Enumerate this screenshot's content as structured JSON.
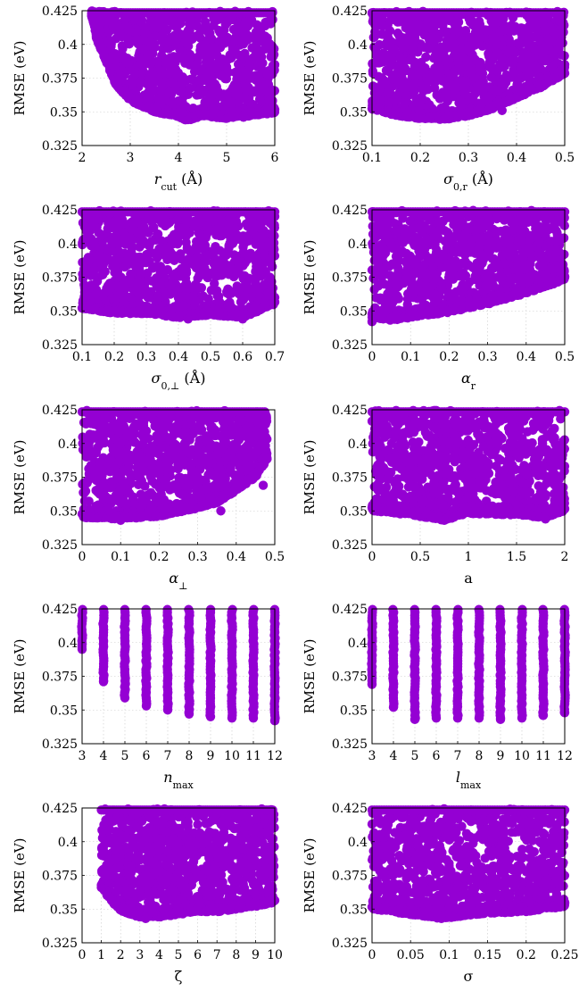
{
  "colors": {
    "points": "#9400D3",
    "frame": "#000000",
    "grid": "#c8c8c8"
  },
  "shared": {
    "ylabel": "RMSE (eV)",
    "ylim": [
      0.325,
      0.425
    ],
    "yticks": [
      0.325,
      0.35,
      0.375,
      0.4,
      0.425
    ],
    "ytick_labels": [
      "0.325",
      "0.35",
      "0.375",
      "0.4",
      "0.425"
    ]
  },
  "chart_data": [
    {
      "type": "scatter",
      "xlabel": "r_cut (Å)",
      "ylabel": "RMSE (eV)",
      "xlim": [
        2,
        6
      ],
      "xticks": [
        2,
        3,
        4,
        5,
        6
      ],
      "xtick_labels": [
        "2",
        "3",
        "4",
        "5",
        "6"
      ],
      "ylim": [
        0.325,
        0.425
      ],
      "grid": true,
      "lower_envelope": [
        [
          2.2,
          0.421
        ],
        [
          2.3,
          0.404
        ],
        [
          2.5,
          0.387
        ],
        [
          2.7,
          0.37
        ],
        [
          3.0,
          0.358
        ],
        [
          3.5,
          0.35
        ],
        [
          4.0,
          0.346
        ],
        [
          4.2,
          0.343
        ],
        [
          4.5,
          0.347
        ],
        [
          5.0,
          0.345
        ],
        [
          5.5,
          0.347
        ],
        [
          6.0,
          0.349
        ]
      ],
      "isolated_points": [
        [
          2.2,
          0.421
        ],
        [
          2.7,
          0.374
        ],
        [
          5.35,
          0.346
        ],
        [
          5.85,
          0.35
        ]
      ]
    },
    {
      "type": "scatter",
      "xlabel": "σ_0,r (Å)",
      "ylabel": "RMSE (eV)",
      "xlim": [
        0.1,
        0.5
      ],
      "xticks": [
        0.1,
        0.2,
        0.3,
        0.4,
        0.5
      ],
      "xtick_labels": [
        "0.1",
        "0.2",
        "0.3",
        "0.4",
        "0.5"
      ],
      "ylim": [
        0.325,
        0.425
      ],
      "grid": true,
      "lower_envelope": [
        [
          0.1,
          0.352
        ],
        [
          0.15,
          0.347
        ],
        [
          0.2,
          0.345
        ],
        [
          0.25,
          0.344
        ],
        [
          0.3,
          0.347
        ],
        [
          0.35,
          0.352
        ],
        [
          0.4,
          0.36
        ],
        [
          0.45,
          0.368
        ],
        [
          0.5,
          0.378
        ]
      ],
      "isolated_points": [
        [
          0.37,
          0.351
        ],
        [
          0.5,
          0.385
        ]
      ]
    },
    {
      "type": "scatter",
      "xlabel": "σ_0,⊥ (Å)",
      "ylabel": "RMSE (eV)",
      "xlim": [
        0.1,
        0.7
      ],
      "xticks": [
        0.1,
        0.2,
        0.3,
        0.4,
        0.5,
        0.6,
        0.7
      ],
      "xtick_labels": [
        "0.1",
        "0.2",
        "0.3",
        "0.4",
        "0.5",
        "0.6",
        "0.7"
      ],
      "ylim": [
        0.325,
        0.425
      ],
      "grid": true,
      "lower_envelope": [
        [
          0.1,
          0.352
        ],
        [
          0.2,
          0.348
        ],
        [
          0.3,
          0.348
        ],
        [
          0.4,
          0.345
        ],
        [
          0.5,
          0.347
        ],
        [
          0.6,
          0.345
        ],
        [
          0.7,
          0.355
        ]
      ],
      "isolated_points": [
        [
          0.43,
          0.344
        ],
        [
          0.6,
          0.344
        ],
        [
          0.7,
          0.36
        ]
      ]
    },
    {
      "type": "scatter",
      "xlabel": "α_r",
      "ylabel": "RMSE (eV)",
      "xlim": [
        0,
        0.5
      ],
      "xticks": [
        0,
        0.1,
        0.2,
        0.3,
        0.4,
        0.5
      ],
      "xtick_labels": [
        "0",
        "0.1",
        "0.2",
        "0.3",
        "0.4",
        "0.5"
      ],
      "ylim": [
        0.325,
        0.425
      ],
      "grid": true,
      "lower_envelope": [
        [
          0.0,
          0.345
        ],
        [
          0.05,
          0.343
        ],
        [
          0.1,
          0.345
        ],
        [
          0.2,
          0.349
        ],
        [
          0.3,
          0.355
        ],
        [
          0.4,
          0.363
        ],
        [
          0.45,
          0.368
        ],
        [
          0.5,
          0.373
        ]
      ],
      "isolated_points": [
        [
          0.0,
          0.342
        ],
        [
          0.5,
          0.375
        ]
      ]
    },
    {
      "type": "scatter",
      "xlabel": "α_⊥",
      "ylabel": "RMSE (eV)",
      "xlim": [
        0,
        0.5
      ],
      "xticks": [
        0,
        0.1,
        0.2,
        0.3,
        0.4,
        0.5
      ],
      "xtick_labels": [
        "0",
        "0.1",
        "0.2",
        "0.3",
        "0.4",
        "0.5"
      ],
      "ylim": [
        0.325,
        0.425
      ],
      "grid": true,
      "lower_envelope": [
        [
          0.0,
          0.345
        ],
        [
          0.1,
          0.344
        ],
        [
          0.2,
          0.346
        ],
        [
          0.3,
          0.352
        ],
        [
          0.35,
          0.356
        ],
        [
          0.4,
          0.365
        ],
        [
          0.45,
          0.375
        ],
        [
          0.48,
          0.388
        ]
      ],
      "isolated_points": [
        [
          0.1,
          0.343
        ],
        [
          0.36,
          0.35
        ],
        [
          0.47,
          0.369
        ]
      ]
    },
    {
      "type": "scatter",
      "xlabel": "a",
      "ylabel": "RMSE (eV)",
      "xlim": [
        0,
        2
      ],
      "xticks": [
        0,
        0.5,
        1,
        1.5,
        2
      ],
      "xtick_labels": [
        "0",
        "0.5",
        "1",
        "1.5",
        "2"
      ],
      "ylim": [
        0.325,
        0.425
      ],
      "grid": true,
      "lower_envelope": [
        [
          0.0,
          0.35
        ],
        [
          0.4,
          0.347
        ],
        [
          0.75,
          0.343
        ],
        [
          1.0,
          0.348
        ],
        [
          1.5,
          0.347
        ],
        [
          1.8,
          0.345
        ],
        [
          2.0,
          0.35
        ]
      ],
      "isolated_points": [
        [
          0.75,
          0.343
        ],
        [
          1.8,
          0.344
        ]
      ]
    },
    {
      "type": "scatter",
      "xlabel": "n_max",
      "ylabel": "RMSE (eV)",
      "xlim": [
        3,
        12
      ],
      "xticks": [
        3,
        4,
        5,
        6,
        7,
        8,
        9,
        10,
        11,
        12
      ],
      "xtick_labels": [
        "3",
        "4",
        "5",
        "6",
        "7",
        "8",
        "9",
        "10",
        "11",
        "12"
      ],
      "ylim": [
        0.325,
        0.425
      ],
      "grid": true,
      "discrete_columns": [
        [
          3,
          0.395
        ],
        [
          4,
          0.371
        ],
        [
          5,
          0.359
        ],
        [
          6,
          0.353
        ],
        [
          7,
          0.35
        ],
        [
          8,
          0.347
        ],
        [
          9,
          0.345
        ],
        [
          10,
          0.344
        ],
        [
          11,
          0.344
        ],
        [
          12,
          0.342
        ]
      ]
    },
    {
      "type": "scatter",
      "xlabel": "l_max",
      "ylabel": "RMSE (eV)",
      "xlim": [
        3,
        12
      ],
      "xticks": [
        3,
        4,
        5,
        6,
        7,
        8,
        9,
        10,
        11,
        12
      ],
      "xtick_labels": [
        "3",
        "4",
        "5",
        "6",
        "7",
        "8",
        "9",
        "10",
        "11",
        "12"
      ],
      "ylim": [
        0.325,
        0.425
      ],
      "grid": true,
      "discrete_columns": [
        [
          3,
          0.369
        ],
        [
          4,
          0.352
        ],
        [
          5,
          0.343
        ],
        [
          6,
          0.344
        ],
        [
          7,
          0.344
        ],
        [
          8,
          0.344
        ],
        [
          9,
          0.343
        ],
        [
          10,
          0.344
        ],
        [
          11,
          0.346
        ],
        [
          12,
          0.348
        ]
      ]
    },
    {
      "type": "scatter",
      "xlabel": "ζ",
      "ylabel": "RMSE (eV)",
      "xlim": [
        0,
        10
      ],
      "xticks": [
        0,
        1,
        2,
        3,
        4,
        5,
        6,
        7,
        8,
        9,
        10
      ],
      "xtick_labels": [
        "0",
        "1",
        "2",
        "3",
        "4",
        "5",
        "6",
        "7",
        "8",
        "9",
        "10"
      ],
      "ylim": [
        0.325,
        0.425
      ],
      "grid": true,
      "lower_envelope": [
        [
          1.0,
          0.366
        ],
        [
          1.5,
          0.356
        ],
        [
          2.0,
          0.349
        ],
        [
          2.5,
          0.346
        ],
        [
          3.0,
          0.344
        ],
        [
          4.0,
          0.344
        ],
        [
          5.0,
          0.346
        ],
        [
          6.0,
          0.348
        ],
        [
          7.0,
          0.348
        ],
        [
          8.0,
          0.35
        ],
        [
          9.0,
          0.352
        ],
        [
          10.0,
          0.355
        ]
      ],
      "isolated_points": [
        [
          1.0,
          0.366
        ],
        [
          3.3,
          0.343
        ]
      ]
    },
    {
      "type": "scatter",
      "xlabel": "σ",
      "ylabel": "RMSE (eV)",
      "xlim": [
        0,
        0.25
      ],
      "xticks": [
        0,
        0.05,
        0.1,
        0.15,
        0.2,
        0.25
      ],
      "xtick_labels": [
        "0",
        "0.05",
        "0.1",
        "0.15",
        "0.2",
        "0.25"
      ],
      "ylim": [
        0.325,
        0.425
      ],
      "grid": true,
      "lower_envelope": [
        [
          0.0,
          0.35
        ],
        [
          0.05,
          0.346
        ],
        [
          0.09,
          0.343
        ],
        [
          0.12,
          0.345
        ],
        [
          0.15,
          0.347
        ],
        [
          0.2,
          0.348
        ],
        [
          0.25,
          0.352
        ]
      ],
      "isolated_points": [
        [
          0.09,
          0.343
        ],
        [
          0.25,
          0.355
        ]
      ]
    }
  ]
}
